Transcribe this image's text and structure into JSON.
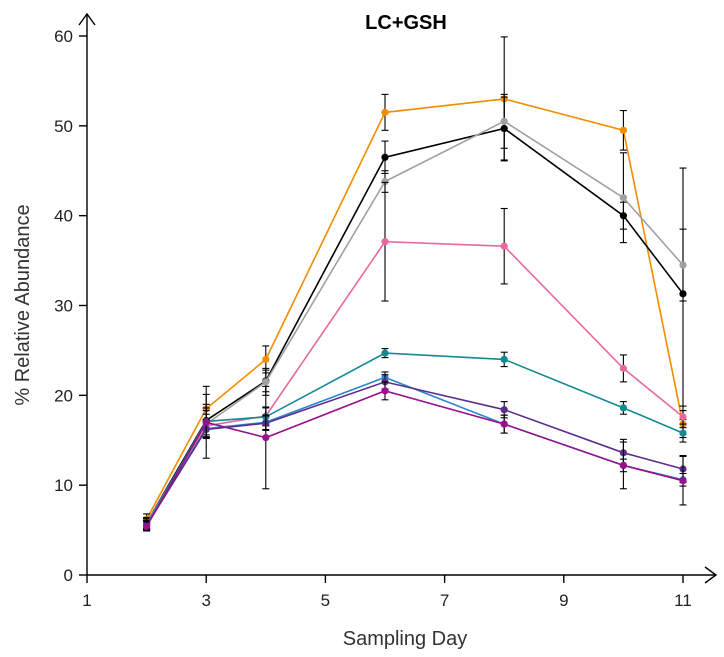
{
  "chart_data": {
    "type": "line",
    "title": "LC+GSH",
    "xlabel": "Sampling Day",
    "ylabel": "% Relative Abundance",
    "xlim": [
      1,
      11
    ],
    "ylim": [
      0,
      60
    ],
    "x_ticks": [
      1,
      3,
      5,
      7,
      9,
      11
    ],
    "y_ticks": [
      0,
      10,
      20,
      30,
      40,
      50,
      60
    ],
    "grid": false,
    "legend": "none",
    "x": [
      2,
      3,
      4,
      6,
      8,
      10,
      11
    ],
    "series": [
      {
        "color": "#f28c00",
        "values": [
          6.2,
          18.5,
          24.0,
          51.5,
          53.0,
          49.5,
          16.8
        ],
        "errors": [
          0.6,
          1.6,
          1.5,
          2.0,
          6.9,
          2.2,
          1.5
        ]
      },
      {
        "color": "#000000",
        "values": [
          5.8,
          17.2,
          21.6,
          46.5,
          49.7,
          40.0,
          31.3
        ],
        "errors": [
          0.6,
          1.8,
          1.2,
          1.8,
          3.5,
          1.5,
          14.0
        ]
      },
      {
        "color": "#a0a0a0",
        "values": [
          5.8,
          16.8,
          21.5,
          43.8,
          50.5,
          42.0,
          34.5
        ],
        "errors": [
          0.6,
          1.5,
          1.5,
          1.2,
          3.0,
          5.0,
          4.0
        ]
      },
      {
        "color": "#e8689f",
        "values": [
          5.7,
          16.6,
          17.7,
          37.1,
          36.6,
          23.0,
          17.6
        ],
        "errors": [
          0.6,
          1.3,
          1.0,
          6.6,
          4.2,
          1.5,
          1.2
        ]
      },
      {
        "color": "#138a93",
        "values": [
          5.6,
          17.1,
          17.6,
          24.7,
          24.0,
          18.6,
          15.8
        ],
        "errors": [
          0.5,
          1.5,
          1.0,
          0.5,
          0.8,
          0.7,
          1.0
        ]
      },
      {
        "color": "#2b86d0",
        "values": [
          5.6,
          16.3,
          17.0,
          22.0,
          16.8,
          12.2,
          10.6
        ],
        "errors": [
          0.5,
          1.0,
          0.8,
          0.6,
          1.0,
          0.7,
          0.7
        ]
      },
      {
        "color": "#5b2d8e",
        "values": [
          5.5,
          16.2,
          16.9,
          21.5,
          18.4,
          13.6,
          11.8
        ],
        "errors": [
          0.5,
          1.0,
          0.8,
          0.8,
          0.9,
          1.5,
          1.5
        ]
      },
      {
        "color": "#990f8d",
        "values": [
          5.4,
          17.0,
          15.3,
          20.5,
          16.8,
          12.2,
          10.5
        ],
        "errors": [
          0.5,
          4.0,
          5.7,
          1.0,
          1.0,
          2.6,
          2.7
        ]
      }
    ]
  }
}
